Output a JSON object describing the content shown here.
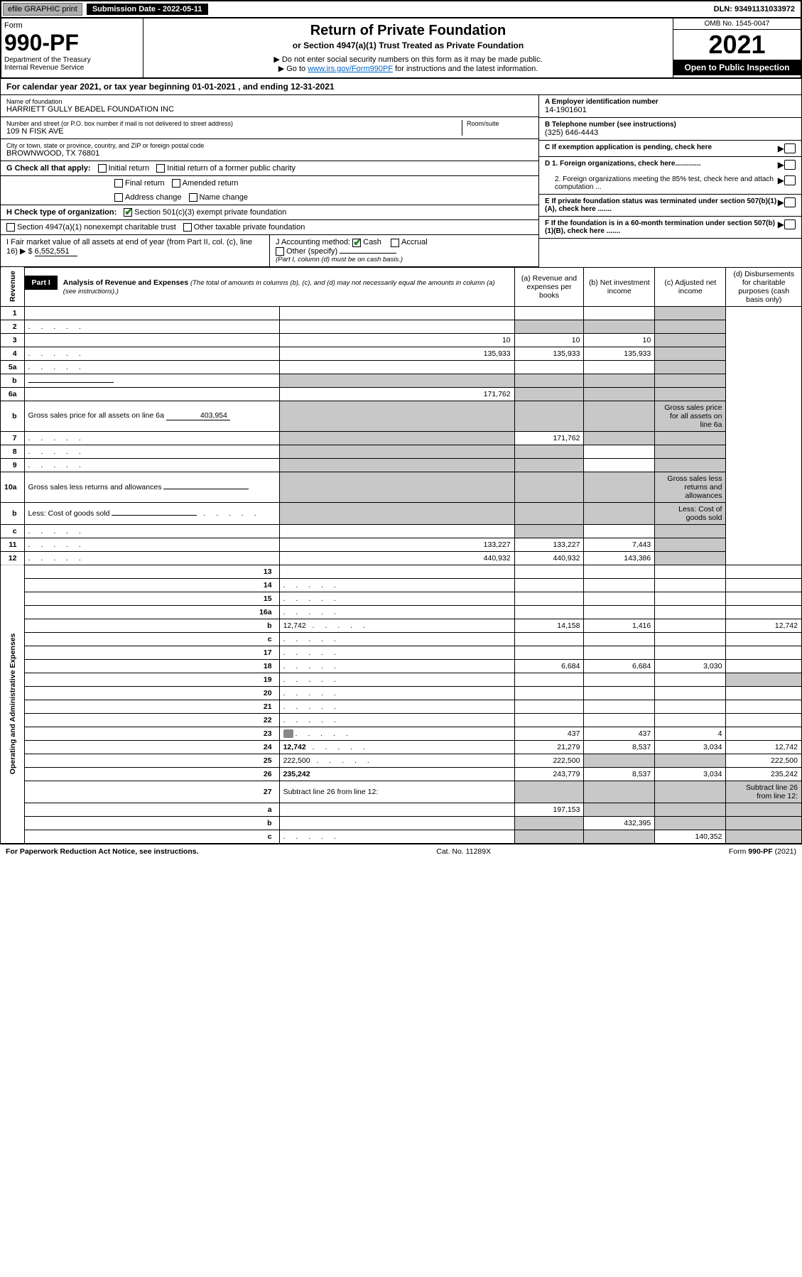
{
  "topbar": {
    "efile": "efile GRAPHIC print",
    "sub_label": "Submission Date - 2022-05-11",
    "dln": "DLN: 93491131033972"
  },
  "header": {
    "form": "Form",
    "form_no": "990-PF",
    "dept": "Department of the Treasury\nInternal Revenue Service",
    "title": "Return of Private Foundation",
    "subtitle": "or Section 4947(a)(1) Trust Treated as Private Foundation",
    "instr1": "▶ Do not enter social security numbers on this form as it may be made public.",
    "instr2_pre": "▶ Go to ",
    "instr2_link": "www.irs.gov/Form990PF",
    "instr2_post": " for instructions and the latest information.",
    "omb": "OMB No. 1545-0047",
    "year": "2021",
    "open": "Open to Public Inspection"
  },
  "cal": "For calendar year 2021, or tax year beginning 01-01-2021          , and ending 12-31-2021",
  "entity": {
    "name_label": "Name of foundation",
    "name": "HARRIETT GULLY BEADEL FOUNDATION INC",
    "addr_label": "Number and street (or P.O. box number if mail is not delivered to street address)",
    "room_label": "Room/suite",
    "addr": "109 N FISK AVE",
    "city_label": "City or town, state or province, country, and ZIP or foreign postal code",
    "city": "BROWNWOOD, TX  76801",
    "ein_label": "A Employer identification number",
    "ein": "14-1901601",
    "tel_label": "B Telephone number (see instructions)",
    "tel": "(325) 646-4443",
    "c_label": "C If exemption application is pending, check here",
    "d1": "D 1. Foreign organizations, check here.............",
    "d2": "2. Foreign organizations meeting the 85% test, check here and attach computation ...",
    "e_label": "E  If private foundation status was terminated under section 507(b)(1)(A), check here .......",
    "f_label": "F  If the foundation is in a 60-month termination under section 507(b)(1)(B), check here .......",
    "g_label": "G Check all that apply:",
    "g_opts": [
      "Initial return",
      "Initial return of a former public charity",
      "Final return",
      "Amended return",
      "Address change",
      "Name change"
    ],
    "h_label": "H Check type of organization:",
    "h1": "Section 501(c)(3) exempt private foundation",
    "h2": "Section 4947(a)(1) nonexempt charitable trust",
    "h3": "Other taxable private foundation",
    "i_label": "I Fair market value of all assets at end of year (from Part II, col. (c), line 16) ▶ $",
    "i_val": "6,552,551",
    "j_label": "J Accounting method:",
    "j_cash": "Cash",
    "j_accrual": "Accrual",
    "j_other": "Other (specify)",
    "j_note": "(Part I, column (d) must be on cash basis.)"
  },
  "part1": {
    "title": "Part I",
    "heading": "Analysis of Revenue and Expenses",
    "heading_note": "(The total of amounts in columns (b), (c), and (d) may not necessarily equal the amounts in column (a) (see instructions).)",
    "col_a": "(a)  Revenue and expenses per books",
    "col_b": "(b)  Net investment income",
    "col_c": "(c)  Adjusted net income",
    "col_d": "(d)  Disbursements for charitable purposes (cash basis only)"
  },
  "sections": {
    "revenue": "Revenue",
    "expenses": "Operating and Administrative Expenses"
  },
  "rows": [
    {
      "n": "1",
      "d": "",
      "a": "",
      "b": "",
      "c": "",
      "shade_d": true
    },
    {
      "n": "2",
      "d": "",
      "a": "",
      "b": "",
      "c": "",
      "shade_bcd": true,
      "bold_not": true,
      "dotted": true
    },
    {
      "n": "3",
      "d": "",
      "a": "10",
      "b": "10",
      "c": "10",
      "shade_d": true
    },
    {
      "n": "4",
      "d": "",
      "a": "135,933",
      "b": "135,933",
      "c": "135,933",
      "shade_d": true,
      "dotted": true
    },
    {
      "n": "5a",
      "d": "",
      "a": "",
      "b": "",
      "c": "",
      "shade_d": true,
      "dotted": true
    },
    {
      "n": "b",
      "d": "",
      "a": "",
      "b": "",
      "c": "",
      "inline_blank": true,
      "shade_abcd": true
    },
    {
      "n": "6a",
      "d": "",
      "a": "171,762",
      "b": "",
      "c": "",
      "shade_bcd": true
    },
    {
      "n": "b",
      "d": "Gross sales price for all assets on line 6a",
      "inline_val": "403,954",
      "shade_abcd": true
    },
    {
      "n": "7",
      "d": "",
      "a": "",
      "b": "171,762",
      "c": "",
      "shade_a": true,
      "shade_cd": true,
      "dotted": true
    },
    {
      "n": "8",
      "d": "",
      "a": "",
      "b": "",
      "c": "",
      "shade_ab": true,
      "shade_d": true,
      "dotted": true
    },
    {
      "n": "9",
      "d": "",
      "a": "",
      "b": "",
      "c": "",
      "shade_ab": true,
      "shade_d": true,
      "dotted": true
    },
    {
      "n": "10a",
      "d": "Gross sales less returns and allowances",
      "inline_blank": true,
      "shade_abcd": true
    },
    {
      "n": "b",
      "d": "Less: Cost of goods sold",
      "inline_blank": true,
      "shade_abcd": true,
      "dotted": true
    },
    {
      "n": "c",
      "d": "",
      "a": "",
      "b": "",
      "c": "",
      "shade_b": true,
      "shade_d": true,
      "dotted": true
    },
    {
      "n": "11",
      "d": "",
      "a": "133,227",
      "b": "133,227",
      "c": "7,443",
      "shade_d": true,
      "dotted": true
    },
    {
      "n": "12",
      "d": "",
      "a": "440,932",
      "b": "440,932",
      "c": "143,386",
      "shade_d": true,
      "bold": true,
      "dotted": true
    },
    {
      "n": "13",
      "d": "",
      "a": "",
      "b": "",
      "c": ""
    },
    {
      "n": "14",
      "d": "",
      "a": "",
      "b": "",
      "c": "",
      "dotted": true
    },
    {
      "n": "15",
      "d": "",
      "a": "",
      "b": "",
      "c": "",
      "dotted": true
    },
    {
      "n": "16a",
      "d": "",
      "a": "",
      "b": "",
      "c": "",
      "dotted": true
    },
    {
      "n": "b",
      "d": "12,742",
      "a": "14,158",
      "b": "1,416",
      "c": "",
      "dotted": true
    },
    {
      "n": "c",
      "d": "",
      "a": "",
      "b": "",
      "c": "",
      "dotted": true
    },
    {
      "n": "17",
      "d": "",
      "a": "",
      "b": "",
      "c": "",
      "dotted": true
    },
    {
      "n": "18",
      "d": "",
      "a": "6,684",
      "b": "6,684",
      "c": "3,030",
      "dotted": true
    },
    {
      "n": "19",
      "d": "",
      "a": "",
      "b": "",
      "c": "",
      "shade_d": true,
      "dotted": true
    },
    {
      "n": "20",
      "d": "",
      "a": "",
      "b": "",
      "c": "",
      "dotted": true
    },
    {
      "n": "21",
      "d": "",
      "a": "",
      "b": "",
      "c": "",
      "dotted": true
    },
    {
      "n": "22",
      "d": "",
      "a": "",
      "b": "",
      "c": "",
      "dotted": true
    },
    {
      "n": "23",
      "d": "",
      "a": "437",
      "b": "437",
      "c": "4",
      "icon": true,
      "dotted": true
    },
    {
      "n": "24",
      "d": "12,742",
      "a": "21,279",
      "b": "8,537",
      "c": "3,034",
      "bold": true,
      "dotted": true
    },
    {
      "n": "25",
      "d": "222,500",
      "a": "222,500",
      "b": "",
      "c": "",
      "shade_bc": true,
      "dotted": true
    },
    {
      "n": "26",
      "d": "235,242",
      "a": "243,779",
      "b": "8,537",
      "c": "3,034",
      "bold": true
    },
    {
      "n": "27",
      "d": "Subtract line 26 from line 12:",
      "shade_abcd": true
    },
    {
      "n": "a",
      "d": "",
      "a": "197,153",
      "b": "",
      "c": "",
      "shade_bcd": true,
      "bold": true
    },
    {
      "n": "b",
      "d": "",
      "a": "",
      "b": "432,395",
      "c": "",
      "shade_a": true,
      "shade_cd": true,
      "bold": true
    },
    {
      "n": "c",
      "d": "",
      "a": "",
      "b": "",
      "c": "140,352",
      "shade_ab": true,
      "shade_d": true,
      "bold": true,
      "dotted": true
    }
  ],
  "footer": {
    "left": "For Paperwork Reduction Act Notice, see instructions.",
    "mid": "Cat. No. 11289X",
    "right": "Form 990-PF (2021)"
  },
  "colors": {
    "shade": "#c8c8c8",
    "link": "#0066cc",
    "check": "#1a7a1a"
  }
}
